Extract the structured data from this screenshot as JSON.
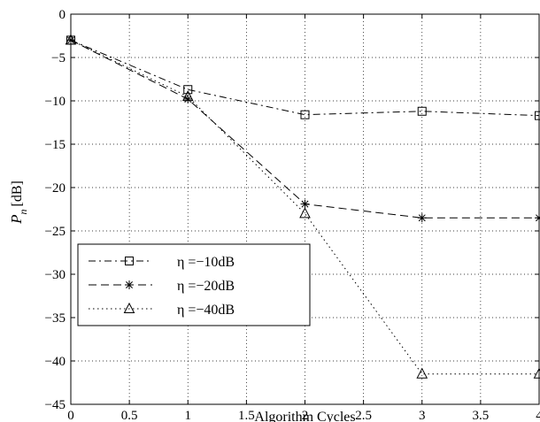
{
  "chart_data": {
    "type": "line",
    "xlabel": "Algorithm Cycles",
    "ylabel_main": "P",
    "ylabel_sub": "n",
    "ylabel_unit": "[dB]",
    "xlim": [
      0,
      4
    ],
    "ylim": [
      -45,
      0
    ],
    "xticks": [
      "0",
      "0.5",
      "1",
      "1.5",
      "2",
      "2.5",
      "3",
      "3.5",
      "4"
    ],
    "yticks": [
      "0",
      "-5",
      "-10",
      "-15",
      "-20",
      "-25",
      "-30",
      "-35",
      "-40",
      "-45"
    ],
    "grid": true,
    "legend_position": "lower-left",
    "x": [
      0,
      1,
      2,
      3,
      4
    ],
    "series": [
      {
        "name": "η =−10dB",
        "marker": "square",
        "line_style": "dash-dot",
        "values": [
          -3.0,
          -8.7,
          -11.6,
          -11.2,
          -11.7
        ]
      },
      {
        "name": "η =−20dB",
        "marker": "star",
        "line_style": "dashed",
        "values": [
          -3.0,
          -9.8,
          -21.9,
          -23.5,
          -23.5
        ]
      },
      {
        "name": "η =−40dB",
        "marker": "triangle",
        "line_style": "dotted",
        "values": [
          -3.0,
          -9.5,
          -23.0,
          -41.5,
          -41.5
        ]
      }
    ]
  }
}
